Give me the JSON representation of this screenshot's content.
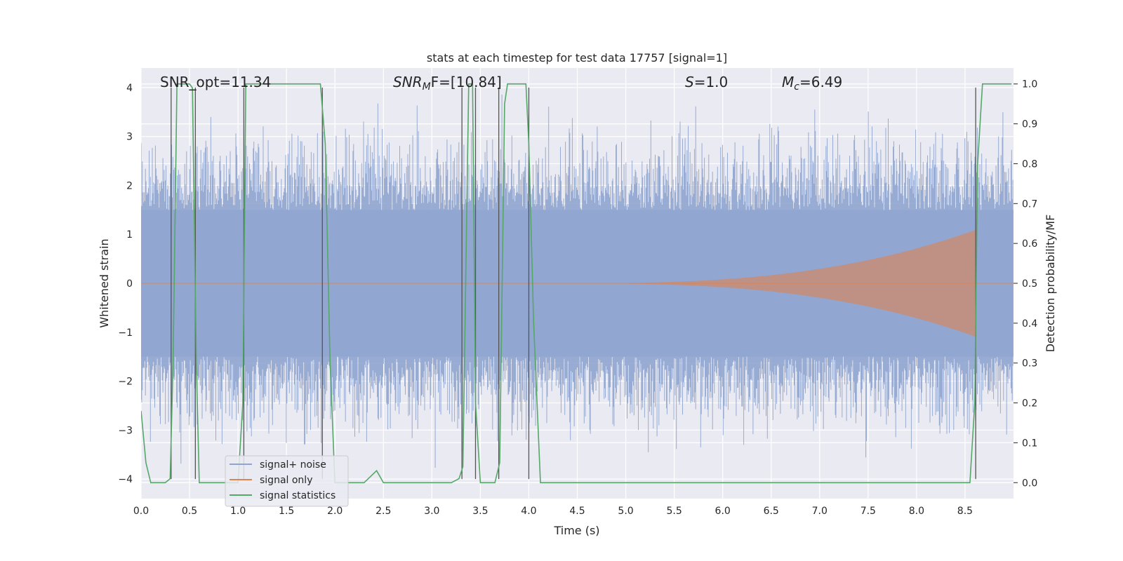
{
  "chart_data": {
    "type": "line",
    "title": "stats at each timestep for test data 17757 [signal=1]",
    "xlabel": "Time (s)",
    "ylabel_left": "Whitened strain",
    "ylabel_right": "Detection probability/MF",
    "xlim": [
      0.0,
      9.0
    ],
    "ylim_left": [
      -4.4,
      4.4
    ],
    "ylim_right": [
      -0.04,
      1.04
    ],
    "x_ticks": [
      "0.0",
      "0.5",
      "1.0",
      "1.5",
      "2.0",
      "2.5",
      "3.0",
      "3.5",
      "4.0",
      "4.5",
      "5.0",
      "5.5",
      "6.0",
      "6.5",
      "7.0",
      "7.5",
      "8.0",
      "8.5"
    ],
    "y_left_ticks": [
      "4",
      "3",
      "2",
      "1",
      "0",
      "−1",
      "−2",
      "−3",
      "−4"
    ],
    "y_right_ticks": [
      "1.0",
      "0.9",
      "0.8",
      "0.7",
      "0.6",
      "0.5",
      "0.4",
      "0.3",
      "0.2",
      "0.1",
      "0.0"
    ],
    "grid": true,
    "annotations": {
      "snr_opt": "SNR_opt=11.34",
      "snr_mf_sym": "SNR",
      "snr_mf_sub": "M",
      "snr_mf_rest": "F=[10.84]",
      "s_sym": "S",
      "s_rest": "=1.0",
      "mc_sym": "M",
      "mc_sub": "c",
      "mc_rest": "=6.49"
    },
    "legend": {
      "position": "lower-left",
      "entries": [
        "signal+ noise",
        "signal only",
        "signal statistics"
      ]
    },
    "colors": {
      "signal_noise": "#8fa5cf",
      "signal_only": "#dd8452",
      "signal_statistics": "#55a868",
      "detection_markers": "#555555",
      "plot_bg": "#eaeaf2"
    },
    "series": [
      {
        "name": "signal+ noise",
        "axis": "left",
        "description_amplitude": 2.7,
        "approx_range": [
          -4.0,
          4.0
        ]
      },
      {
        "name": "signal only",
        "axis": "left",
        "chirp_start": 4.3,
        "chirp_merger": 8.62,
        "peak_amplitude": 1.1
      },
      {
        "name": "signal statistics",
        "axis": "right",
        "x": [
          0.0,
          0.05,
          0.1,
          0.25,
          0.3,
          0.33,
          0.37,
          0.5,
          0.53,
          0.57,
          0.6,
          0.65,
          1.0,
          1.05,
          1.08,
          1.12,
          1.5,
          1.85,
          1.9,
          1.95,
          2.0,
          2.3,
          2.43,
          2.5,
          2.8,
          3.2,
          3.28,
          3.32,
          3.38,
          3.42,
          3.45,
          3.5,
          3.65,
          3.7,
          3.75,
          3.78,
          3.85,
          3.97,
          4.0,
          4.05,
          4.12,
          5.0,
          6.0,
          7.0,
          8.0,
          8.55,
          8.6,
          8.63,
          8.68,
          8.8,
          8.98
        ],
        "values": [
          0.18,
          0.05,
          0.0,
          0.0,
          0.01,
          0.3,
          1.0,
          1.0,
          0.99,
          0.3,
          0.0,
          0.0,
          0.0,
          0.2,
          1.0,
          1.0,
          1.0,
          1.0,
          0.85,
          0.3,
          0.0,
          0.0,
          0.03,
          0.0,
          0.0,
          0.0,
          0.01,
          0.04,
          1.0,
          1.0,
          0.2,
          0.0,
          0.0,
          0.05,
          0.95,
          1.0,
          1.0,
          1.0,
          0.85,
          0.4,
          0.0,
          0.0,
          0.0,
          0.0,
          0.0,
          0.0,
          0.2,
          0.8,
          1.0,
          1.0,
          1.0
        ]
      }
    ],
    "detection_markers_x": [
      0.31,
      0.56,
      1.06,
      1.87,
      3.31,
      3.45,
      3.69,
      4.0,
      8.61
    ]
  }
}
